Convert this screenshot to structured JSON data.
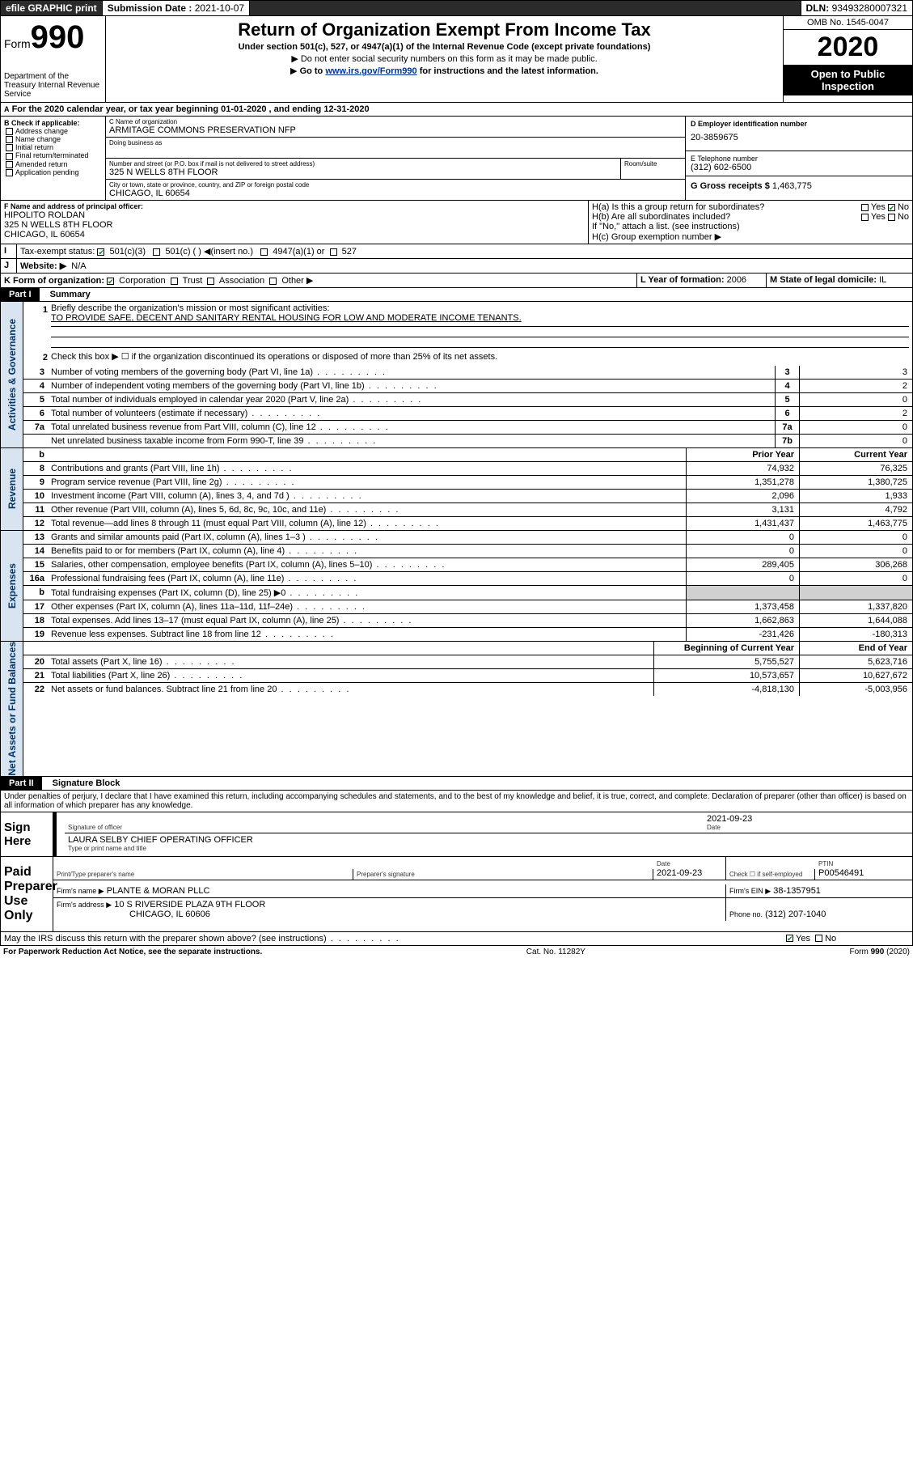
{
  "topbar": {
    "efile": "efile GRAPHIC print",
    "subdate_lbl": "Submission Date :",
    "subdate": "2021-10-07",
    "dln_lbl": "DLN:",
    "dln": "93493280007321"
  },
  "header": {
    "form_word": "Form",
    "form_no": "990",
    "dept": "Department of the Treasury\nInternal Revenue Service",
    "title": "Return of Organization Exempt From Income Tax",
    "sub1": "Under section 501(c), 527, or 4947(a)(1) of the Internal Revenue Code (except private foundations)",
    "sub2": "Do not enter social security numbers on this form as it may be made public.",
    "sub3_a": "Go to ",
    "sub3_link": "www.irs.gov/Form990",
    "sub3_b": " for instructions and the latest information.",
    "omb": "OMB No. 1545-0047",
    "year": "2020",
    "open": "Open to Public Inspection"
  },
  "A": {
    "text": "For the 2020 calendar year, or tax year beginning 01-01-2020   , and ending 12-31-2020"
  },
  "B": {
    "hdr": "B Check if applicable:",
    "opts": [
      "Address change",
      "Name change",
      "Initial return",
      "Final return/terminated",
      "Amended return",
      "Application pending"
    ]
  },
  "C": {
    "name_lbl": "C Name of organization",
    "name": "ARMITAGE COMMONS PRESERVATION NFP",
    "dba_lbl": "Doing business as",
    "addr_lbl": "Number and street (or P.O. box if mail is not delivered to street address)",
    "addr": "325 N WELLS 8TH FLOOR",
    "room_lbl": "Room/suite",
    "city_lbl": "City or town, state or province, country, and ZIP or foreign postal code",
    "city": "CHICAGO, IL  60654"
  },
  "D": {
    "lbl": "D Employer identification number",
    "val": "20-3859675"
  },
  "E": {
    "lbl": "E Telephone number",
    "val": "(312) 602-6500"
  },
  "G": {
    "lbl": "G Gross receipts $",
    "val": "1,463,775"
  },
  "F": {
    "lbl": "F  Name and address of principal officer:",
    "name": "HIPOLITO ROLDAN",
    "addr1": "325 N WELLS 8TH FLOOR",
    "addr2": "CHICAGO, IL  60654"
  },
  "H": {
    "a": "H(a)  Is this a group return for subordinates?",
    "b": "H(b)  Are all subordinates included?",
    "b2": "If \"No,\" attach a list. (see instructions)",
    "c": "H(c)  Group exemption number ▶",
    "yes": "Yes",
    "no": "No"
  },
  "I": {
    "lbl": "Tax-exempt status:",
    "o1": "501(c)(3)",
    "o2": "501(c) (  ) ◀(insert no.)",
    "o3": "4947(a)(1) or",
    "o4": "527"
  },
  "J": {
    "lbl": "Website: ▶",
    "val": "N/A"
  },
  "K": {
    "lbl": "K Form of organization:",
    "o1": "Corporation",
    "o2": "Trust",
    "o3": "Association",
    "o4": "Other ▶"
  },
  "L": {
    "lbl": "L Year of formation:",
    "val": "2006"
  },
  "M": {
    "lbl": "M State of legal domicile:",
    "val": "IL"
  },
  "part1": {
    "tag": "Part I",
    "title": "Summary"
  },
  "sumtabs": [
    "Activities & Governance",
    "Revenue",
    "Expenses",
    "Net Assets or Fund Balances"
  ],
  "q1": {
    "n": "1",
    "t": "Briefly describe the organization's mission or most significant activities:",
    "v": "TO PROVIDE SAFE, DECENT AND SANITARY RENTAL HOUSING FOR LOW AND MODERATE INCOME TENANTS."
  },
  "q2": {
    "n": "2",
    "t": "Check this box ▶ ☐  if the organization discontinued its operations or disposed of more than 25% of its net assets."
  },
  "rows_gov": [
    {
      "n": "3",
      "t": "Number of voting members of the governing body (Part VI, line 1a)",
      "k": "3",
      "v": "3"
    },
    {
      "n": "4",
      "t": "Number of independent voting members of the governing body (Part VI, line 1b)",
      "k": "4",
      "v": "2"
    },
    {
      "n": "5",
      "t": "Total number of individuals employed in calendar year 2020 (Part V, line 2a)",
      "k": "5",
      "v": "0"
    },
    {
      "n": "6",
      "t": "Total number of volunteers (estimate if necessary)",
      "k": "6",
      "v": "2"
    },
    {
      "n": "7a",
      "t": "Total unrelated business revenue from Part VIII, column (C), line 12",
      "k": "7a",
      "v": "0"
    },
    {
      "n": "",
      "t": "Net unrelated business taxable income from Form 990-T, line 39",
      "k": "7b",
      "v": "0"
    }
  ],
  "colhdr": {
    "b": "b",
    "py": "Prior Year",
    "cy": "Current Year"
  },
  "rows_rev": [
    {
      "n": "8",
      "t": "Contributions and grants (Part VIII, line 1h)",
      "py": "74,932",
      "cy": "76,325"
    },
    {
      "n": "9",
      "t": "Program service revenue (Part VIII, line 2g)",
      "py": "1,351,278",
      "cy": "1,380,725"
    },
    {
      "n": "10",
      "t": "Investment income (Part VIII, column (A), lines 3, 4, and 7d )",
      "py": "2,096",
      "cy": "1,933"
    },
    {
      "n": "11",
      "t": "Other revenue (Part VIII, column (A), lines 5, 6d, 8c, 9c, 10c, and 11e)",
      "py": "3,131",
      "cy": "4,792"
    },
    {
      "n": "12",
      "t": "Total revenue—add lines 8 through 11 (must equal Part VIII, column (A), line 12)",
      "py": "1,431,437",
      "cy": "1,463,775"
    }
  ],
  "rows_exp": [
    {
      "n": "13",
      "t": "Grants and similar amounts paid (Part IX, column (A), lines 1–3 )",
      "py": "0",
      "cy": "0"
    },
    {
      "n": "14",
      "t": "Benefits paid to or for members (Part IX, column (A), line 4)",
      "py": "0",
      "cy": "0"
    },
    {
      "n": "15",
      "t": "Salaries, other compensation, employee benefits (Part IX, column (A), lines 5–10)",
      "py": "289,405",
      "cy": "306,268"
    },
    {
      "n": "16a",
      "t": "Professional fundraising fees (Part IX, column (A), line 11e)",
      "py": "0",
      "cy": "0"
    },
    {
      "n": "b",
      "t": "Total fundraising expenses (Part IX, column (D), line 25) ▶0",
      "py": "",
      "cy": "",
      "grey": true
    },
    {
      "n": "17",
      "t": "Other expenses (Part IX, column (A), lines 11a–11d, 11f–24e)",
      "py": "1,373,458",
      "cy": "1,337,820"
    },
    {
      "n": "18",
      "t": "Total expenses. Add lines 13–17 (must equal Part IX, column (A), line 25)",
      "py": "1,662,863",
      "cy": "1,644,088"
    },
    {
      "n": "19",
      "t": "Revenue less expenses. Subtract line 18 from line 12",
      "py": "-231,426",
      "cy": "-180,313"
    }
  ],
  "colhdr2": {
    "py": "Beginning of Current Year",
    "cy": "End of Year"
  },
  "rows_net": [
    {
      "n": "20",
      "t": "Total assets (Part X, line 16)",
      "py": "5,755,527",
      "cy": "5,623,716"
    },
    {
      "n": "21",
      "t": "Total liabilities (Part X, line 26)",
      "py": "10,573,657",
      "cy": "10,627,672"
    },
    {
      "n": "22",
      "t": "Net assets or fund balances. Subtract line 21 from line 20",
      "py": "-4,818,130",
      "cy": "-5,003,956"
    }
  ],
  "part2": {
    "tag": "Part II",
    "title": "Signature Block"
  },
  "perjury": "Under penalties of perjury, I declare that I have examined this return, including accompanying schedules and statements, and to the best of my knowledge and belief, it is true, correct, and complete. Declaration of preparer (other than officer) is based on all information of which preparer has any knowledge.",
  "sign": {
    "here": "Sign Here",
    "sig_lbl": "Signature of officer",
    "date_lbl": "Date",
    "date": "2021-09-23",
    "name": "LAURA SELBY  CHIEF OPERATING OFFICER",
    "name_lbl": "Type or print name and title"
  },
  "paid": {
    "here": "Paid Preparer Use Only",
    "c1": "Print/Type preparer's name",
    "c2": "Preparer's signature",
    "c3": "Date",
    "c3v": "2021-09-23",
    "c4": "Check ☐ if self-employed",
    "c5": "PTIN",
    "c5v": "P00546491",
    "firm_lbl": "Firm's name    ▶",
    "firm": "PLANTE & MORAN PLLC",
    "ein_lbl": "Firm's EIN ▶",
    "ein": "38-1357951",
    "addr_lbl": "Firm's address ▶",
    "addr1": "10 S RIVERSIDE PLAZA 9TH FLOOR",
    "addr2": "CHICAGO, IL  60606",
    "phone_lbl": "Phone no.",
    "phone": "(312) 207-1040"
  },
  "discuss": {
    "t": "May the IRS discuss this return with the preparer shown above? (see instructions)",
    "yes": "Yes",
    "no": "No"
  },
  "footer": {
    "l": "For Paperwork Reduction Act Notice, see the separate instructions.",
    "m": "Cat. No. 11282Y",
    "r": "Form 990 (2020)"
  },
  "colors": {
    "tab_bg": "#d8e4f0",
    "link": "#003399",
    "check": "#0a7d2c"
  }
}
